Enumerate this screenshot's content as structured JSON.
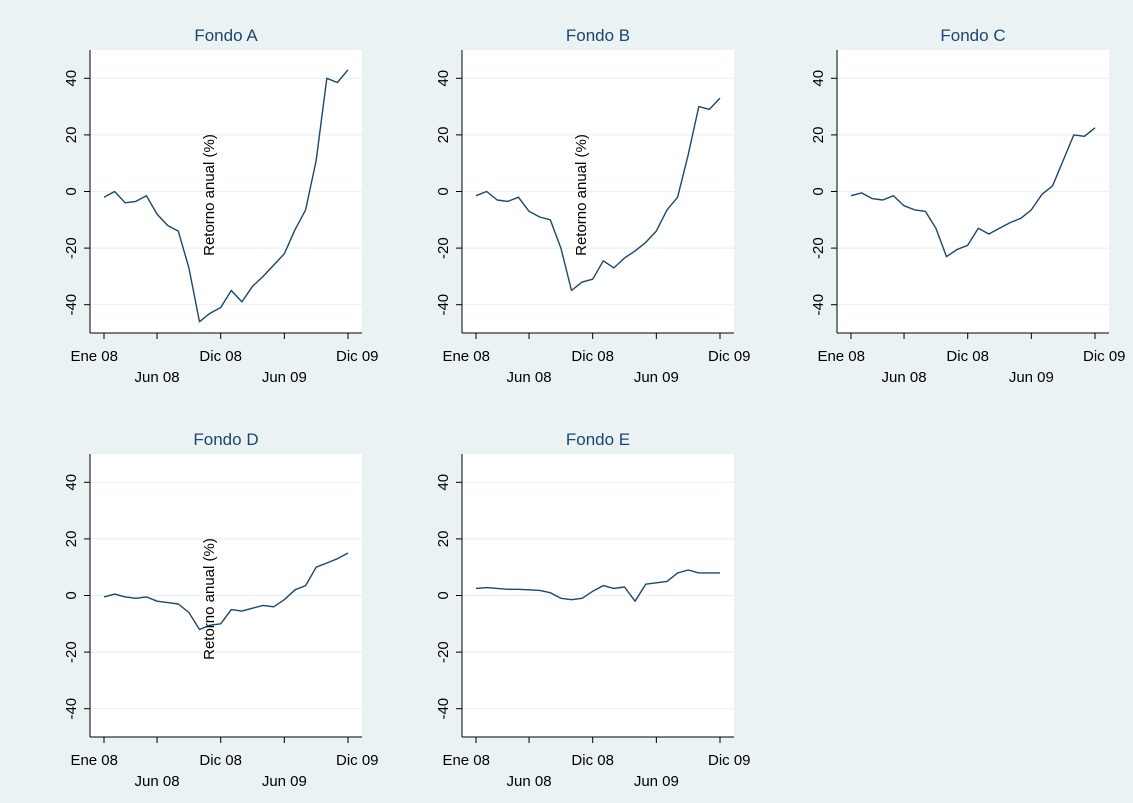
{
  "colors": {
    "outer_background": "#eaf2f3",
    "plot_background": "#ffffff",
    "gridline": "#eaf2f3",
    "series_line": "#1a476f",
    "title_text": "#1a476f",
    "axis": "#000000"
  },
  "shared_axis": {
    "ylabel": "Retorno anual (%)",
    "y_ticks": [
      -40,
      -20,
      0,
      20,
      40
    ],
    "y_tick_labels": [
      "-40",
      "-20",
      "0",
      "20",
      "40"
    ],
    "ylim": [
      -50,
      50
    ],
    "x_ticks": [
      {
        "label": "Ene 08",
        "month": 0
      },
      {
        "label": "Jun 08",
        "month": 5
      },
      {
        "label": "Dic 08",
        "month": 11
      },
      {
        "label": "Jun 09",
        "month": 17
      },
      {
        "label": "Dic 09",
        "month": 23
      }
    ]
  },
  "chart_data": [
    {
      "type": "line",
      "title": "Fondo A",
      "ylabel": "Retorno anual (%)",
      "x": [
        "Ene 08",
        "Feb 08",
        "Mar 08",
        "Abr 08",
        "May 08",
        "Jun 08",
        "Jul 08",
        "Ago 08",
        "Sep 08",
        "Oct 08",
        "Nov 08",
        "Dic 08",
        "Ene 09",
        "Feb 09",
        "Mar 09",
        "Abr 09",
        "May 09",
        "Jun 09",
        "Jul 09",
        "Ago 09",
        "Sep 09",
        "Oct 09",
        "Nov 09",
        "Dic 09"
      ],
      "values": [
        -2,
        0,
        -4,
        -3.5,
        -1.5,
        -8,
        -12,
        -14,
        -27,
        -46,
        -43,
        -41,
        -35,
        -39,
        -33.5,
        -30,
        -26,
        -22,
        -13.5,
        -6.5,
        11,
        40,
        38.5,
        43
      ],
      "ylim": [
        -50,
        50
      ]
    },
    {
      "type": "line",
      "title": "Fondo B",
      "ylabel": "Retorno anual (%)",
      "x": [
        "Ene 08",
        "Feb 08",
        "Mar 08",
        "Abr 08",
        "May 08",
        "Jun 08",
        "Jul 08",
        "Ago 08",
        "Sep 08",
        "Oct 08",
        "Nov 08",
        "Dic 08",
        "Ene 09",
        "Feb 09",
        "Mar 09",
        "Abr 09",
        "May 09",
        "Jun 09",
        "Jul 09",
        "Ago 09",
        "Sep 09",
        "Oct 09",
        "Nov 09",
        "Dic 09"
      ],
      "values": [
        -1.5,
        0,
        -3,
        -3.5,
        -2,
        -7,
        -9,
        -10,
        -20,
        -35,
        -32,
        -31,
        -24.5,
        -27,
        -23.5,
        -21,
        -18,
        -14,
        -6.5,
        -2,
        13,
        30,
        29,
        33
      ],
      "ylim": [
        -50,
        50
      ]
    },
    {
      "type": "line",
      "title": "Fondo C",
      "ylabel": "Retorno anual (%)",
      "x": [
        "Ene 08",
        "Feb 08",
        "Mar 08",
        "Abr 08",
        "May 08",
        "Jun 08",
        "Jul 08",
        "Ago 08",
        "Sep 08",
        "Oct 08",
        "Nov 08",
        "Dic 08",
        "Ene 09",
        "Feb 09",
        "Mar 09",
        "Abr 09",
        "May 09",
        "Jun 09",
        "Jul 09",
        "Ago 09",
        "Sep 09",
        "Oct 09",
        "Nov 09",
        "Dic 09"
      ],
      "values": [
        -1.5,
        -0.5,
        -2.5,
        -3,
        -1.5,
        -5,
        -6.5,
        -7,
        -13,
        -23,
        -20.5,
        -19,
        -13,
        -15,
        -13,
        -11,
        -9.5,
        -6.5,
        -1,
        2,
        11,
        20,
        19.5,
        22.5
      ],
      "ylim": [
        -50,
        50
      ]
    },
    {
      "type": "line",
      "title": "Fondo D",
      "ylabel": "Retorno anual (%)",
      "x": [
        "Ene 08",
        "Feb 08",
        "Mar 08",
        "Abr 08",
        "May 08",
        "Jun 08",
        "Jul 08",
        "Ago 08",
        "Sep 08",
        "Oct 08",
        "Nov 08",
        "Dic 08",
        "Ene 09",
        "Feb 09",
        "Mar 09",
        "Abr 09",
        "May 09",
        "Jun 09",
        "Jul 09",
        "Ago 09",
        "Sep 09",
        "Oct 09",
        "Nov 09",
        "Dic 09"
      ],
      "values": [
        -0.5,
        0.5,
        -0.5,
        -1,
        -0.5,
        -2,
        -2.5,
        -3,
        -6,
        -12,
        -10.5,
        -10,
        -5,
        -5.5,
        -4.5,
        -3.5,
        -4,
        -1.5,
        2,
        3.5,
        10,
        11.5,
        13,
        15
      ],
      "ylim": [
        -50,
        50
      ]
    },
    {
      "type": "line",
      "title": "Fondo E",
      "ylabel": "Retorno anual (%)",
      "x": [
        "Ene 08",
        "Feb 08",
        "Mar 08",
        "Abr 08",
        "May 08",
        "Jun 08",
        "Jul 08",
        "Ago 08",
        "Sep 08",
        "Oct 08",
        "Nov 08",
        "Dic 08",
        "Ene 09",
        "Feb 09",
        "Mar 09",
        "Abr 09",
        "May 09",
        "Jun 09",
        "Jul 09",
        "Ago 09",
        "Sep 09",
        "Oct 09",
        "Nov 09",
        "Dic 09"
      ],
      "values": [
        2.5,
        2.8,
        2.5,
        2.2,
        2.2,
        2,
        1.8,
        1,
        -1,
        -1.5,
        -1,
        1.5,
        3.5,
        2.5,
        3,
        -2,
        4,
        4.5,
        5,
        8,
        9,
        8,
        8,
        8
      ],
      "ylim": [
        -50,
        50
      ]
    }
  ]
}
